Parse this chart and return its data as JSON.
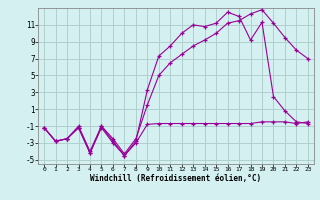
{
  "xlabel": "Windchill (Refroidissement éolien,°C)",
  "background_color": "#d4f0f0",
  "grid_color": "#b0d0d0",
  "line_color": "#990099",
  "xlim": [
    -0.5,
    23.5
  ],
  "ylim": [
    -5.5,
    13.0
  ],
  "yticks": [
    -5,
    -3,
    -1,
    1,
    3,
    5,
    7,
    9,
    11
  ],
  "xticks": [
    0,
    1,
    2,
    3,
    4,
    5,
    6,
    7,
    8,
    9,
    10,
    11,
    12,
    13,
    14,
    15,
    16,
    17,
    18,
    19,
    20,
    21,
    22,
    23
  ],
  "series1_x": [
    0,
    1,
    2,
    3,
    4,
    5,
    6,
    7,
    8,
    9,
    10,
    11,
    12,
    13,
    14,
    15,
    16,
    17,
    18,
    19,
    20,
    21,
    22,
    23
  ],
  "series1_y": [
    -1.2,
    -2.8,
    -2.5,
    -1.2,
    -4.2,
    -1.2,
    -3.0,
    -4.5,
    -3.0,
    -0.8,
    -0.7,
    -0.7,
    -0.7,
    -0.7,
    -0.7,
    -0.7,
    -0.7,
    -0.7,
    -0.7,
    -0.5,
    -0.5,
    -0.5,
    -0.7,
    -0.5
  ],
  "series2_x": [
    0,
    1,
    2,
    3,
    4,
    5,
    6,
    7,
    8,
    9,
    10,
    11,
    12,
    13,
    14,
    15,
    16,
    17,
    18,
    19,
    20,
    21,
    22,
    23
  ],
  "series2_y": [
    -1.2,
    -2.8,
    -2.5,
    -1.2,
    -4.2,
    -1.0,
    -2.8,
    -4.5,
    -2.8,
    3.3,
    7.3,
    8.5,
    10.0,
    11.0,
    10.8,
    11.2,
    12.5,
    12.0,
    9.2,
    11.3,
    2.5,
    0.8,
    -0.5,
    -0.7
  ],
  "series3_x": [
    0,
    1,
    2,
    3,
    4,
    5,
    6,
    7,
    8,
    9,
    10,
    11,
    12,
    13,
    14,
    15,
    16,
    17,
    18,
    19,
    20,
    21,
    22,
    23
  ],
  "series3_y": [
    -1.2,
    -2.8,
    -2.5,
    -1.0,
    -4.0,
    -1.0,
    -2.5,
    -4.3,
    -2.5,
    1.5,
    5.0,
    6.5,
    7.5,
    8.5,
    9.2,
    10.0,
    11.2,
    11.5,
    12.3,
    12.8,
    11.2,
    9.5,
    8.0,
    7.0
  ],
  "tick_fontsize_x": 4.5,
  "tick_fontsize_y": 5.5,
  "xlabel_fontsize": 5.5,
  "lw": 0.8,
  "ms": 3.0
}
